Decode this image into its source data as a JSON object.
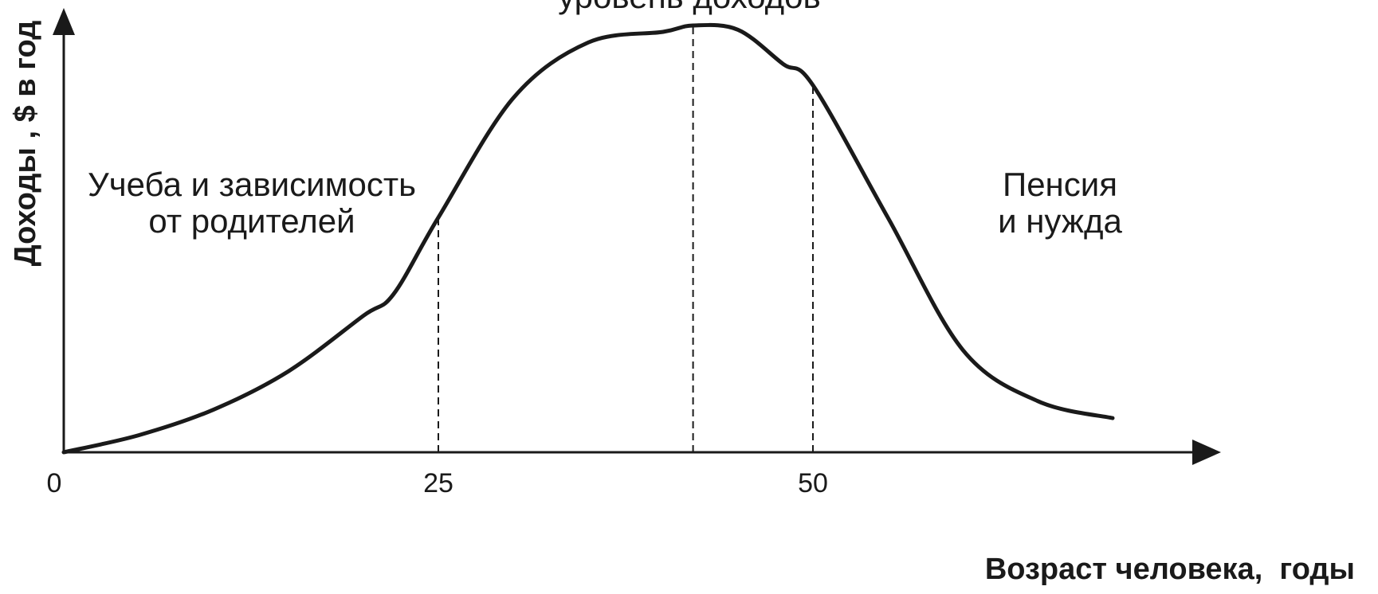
{
  "chart_data": {
    "type": "line",
    "title": "",
    "xlabel": "Возраст человека,  годы",
    "ylabel": "Доходы , $ в год",
    "x_ticks": [
      "0",
      "25",
      "50"
    ],
    "xlim": [
      0,
      70
    ],
    "ylim": [
      0,
      100
    ],
    "grid": false,
    "series": [
      {
        "x": [
          0,
          5,
          10,
          15,
          20,
          22,
          25,
          30,
          35,
          40,
          42,
          45,
          48,
          50,
          55,
          60,
          65,
          70
        ],
        "y": [
          0,
          4,
          10,
          19,
          32,
          37,
          55,
          83,
          96,
          98.5,
          100,
          99,
          91,
          86,
          55,
          24,
          12,
          8
        ]
      }
    ],
    "reference_lines_x": [
      25,
      42,
      50
    ],
    "annotations": {
      "left_line1": "Учеба и зависимость",
      "left_line2": "от родителей",
      "top": "уровень доходов",
      "right_line1": "Пенсия",
      "right_line2": "и нужда"
    },
    "colors": {
      "ink": "#1a1a1a",
      "background": "#ffffff"
    }
  }
}
